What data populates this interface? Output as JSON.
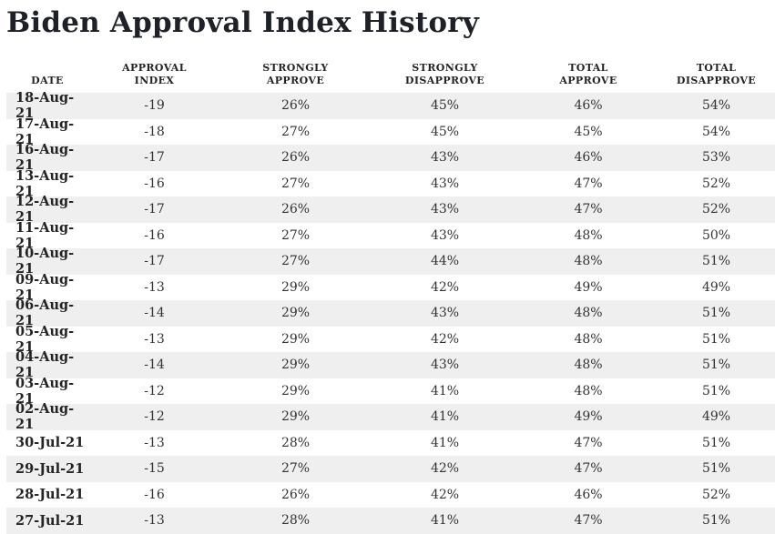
{
  "title": "Biden Approval Index History",
  "colors": {
    "stripe": "#efefef",
    "title_text": "#1e2127",
    "header_text": "#222426",
    "body_text": "#333333",
    "background": "#ffffff"
  },
  "chart_data": {
    "type": "table",
    "title": "Biden Approval Index History",
    "columns": [
      {
        "id": "date",
        "label": "DATE"
      },
      {
        "id": "approval_index",
        "label": "APPROVAL\nINDEX"
      },
      {
        "id": "strongly_approve",
        "label": "STRONGLY\nAPPROVE"
      },
      {
        "id": "strongly_disapprove",
        "label": "STRONGLY\nDISAPPROVE"
      },
      {
        "id": "total_approve",
        "label": "TOTAL\nAPPROVE"
      },
      {
        "id": "total_disapprove",
        "label": "TOTAL\nDISAPPROVE"
      }
    ],
    "rows": [
      {
        "date": "18-Aug-21",
        "approval_index": "-19",
        "strongly_approve": "26%",
        "strongly_disapprove": "45%",
        "total_approve": "46%",
        "total_disapprove": "54%"
      },
      {
        "date": "17-Aug-21",
        "approval_index": "-18",
        "strongly_approve": "27%",
        "strongly_disapprove": "45%",
        "total_approve": "45%",
        "total_disapprove": "54%"
      },
      {
        "date": "16-Aug-21",
        "approval_index": "-17",
        "strongly_approve": "26%",
        "strongly_disapprove": "43%",
        "total_approve": "46%",
        "total_disapprove": "53%"
      },
      {
        "date": "13-Aug-21",
        "approval_index": "-16",
        "strongly_approve": "27%",
        "strongly_disapprove": "43%",
        "total_approve": "47%",
        "total_disapprove": "52%"
      },
      {
        "date": "12-Aug-21",
        "approval_index": "-17",
        "strongly_approve": "26%",
        "strongly_disapprove": "43%",
        "total_approve": "47%",
        "total_disapprove": "52%"
      },
      {
        "date": "11-Aug-21",
        "approval_index": "-16",
        "strongly_approve": "27%",
        "strongly_disapprove": "43%",
        "total_approve": "48%",
        "total_disapprove": "50%"
      },
      {
        "date": "10-Aug-21",
        "approval_index": "-17",
        "strongly_approve": "27%",
        "strongly_disapprove": "44%",
        "total_approve": "48%",
        "total_disapprove": "51%"
      },
      {
        "date": "09-Aug-21",
        "approval_index": "-13",
        "strongly_approve": "29%",
        "strongly_disapprove": "42%",
        "total_approve": "49%",
        "total_disapprove": "49%"
      },
      {
        "date": "06-Aug-21",
        "approval_index": "-14",
        "strongly_approve": "29%",
        "strongly_disapprove": "43%",
        "total_approve": "48%",
        "total_disapprove": "51%"
      },
      {
        "date": "05-Aug-21",
        "approval_index": "-13",
        "strongly_approve": "29%",
        "strongly_disapprove": "42%",
        "total_approve": "48%",
        "total_disapprove": "51%"
      },
      {
        "date": "04-Aug-21",
        "approval_index": "-14",
        "strongly_approve": "29%",
        "strongly_disapprove": "43%",
        "total_approve": "48%",
        "total_disapprove": "51%"
      },
      {
        "date": "03-Aug-21",
        "approval_index": "-12",
        "strongly_approve": "29%",
        "strongly_disapprove": "41%",
        "total_approve": "48%",
        "total_disapprove": "51%"
      },
      {
        "date": "02-Aug-21",
        "approval_index": "-12",
        "strongly_approve": "29%",
        "strongly_disapprove": "41%",
        "total_approve": "49%",
        "total_disapprove": "49%"
      },
      {
        "date": "30-Jul-21",
        "approval_index": "-13",
        "strongly_approve": "28%",
        "strongly_disapprove": "41%",
        "total_approve": "47%",
        "total_disapprove": "51%"
      },
      {
        "date": "29-Jul-21",
        "approval_index": "-15",
        "strongly_approve": "27%",
        "strongly_disapprove": "42%",
        "total_approve": "47%",
        "total_disapprove": "51%"
      },
      {
        "date": "28-Jul-21",
        "approval_index": "-16",
        "strongly_approve": "26%",
        "strongly_disapprove": "42%",
        "total_approve": "46%",
        "total_disapprove": "52%"
      },
      {
        "date": "27-Jul-21",
        "approval_index": "-13",
        "strongly_approve": "28%",
        "strongly_disapprove": "41%",
        "total_approve": "47%",
        "total_disapprove": "51%"
      }
    ]
  }
}
